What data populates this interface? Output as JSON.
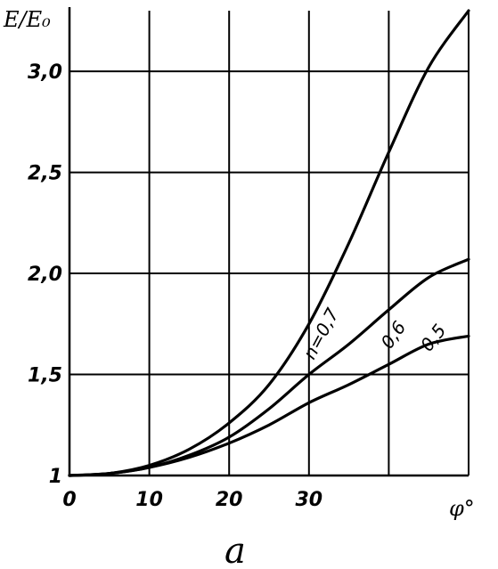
{
  "chart_data": {
    "type": "line",
    "ylabel": "E/E₀",
    "xlabel": "φ°",
    "panel_label": "a",
    "xlim": [
      0,
      50
    ],
    "ylim": [
      1,
      3.3
    ],
    "x_ticks": [
      0,
      10,
      20,
      30
    ],
    "x_tick_labels": [
      "0",
      "10",
      "20",
      "30"
    ],
    "y_ticks": [
      1,
      1.5,
      2.0,
      2.5,
      3.0
    ],
    "y_tick_labels": [
      "1",
      "1,5",
      "2,0",
      "2,5",
      "3,0"
    ],
    "grid": true,
    "line_color": "#000000",
    "series": [
      {
        "name": "n=0,7",
        "x": [
          0,
          5,
          10,
          15,
          20,
          25,
          30,
          35,
          40,
          45,
          50
        ],
        "y": [
          1.0,
          1.01,
          1.05,
          1.13,
          1.26,
          1.45,
          1.75,
          2.15,
          2.6,
          3.02,
          3.3
        ]
      },
      {
        "name": "0,6",
        "x": [
          0,
          5,
          10,
          15,
          20,
          25,
          30,
          35,
          40,
          45,
          50
        ],
        "y": [
          1.0,
          1.01,
          1.04,
          1.1,
          1.19,
          1.33,
          1.5,
          1.65,
          1.82,
          1.98,
          2.07
        ]
      },
      {
        "name": "0,5",
        "x": [
          0,
          5,
          10,
          15,
          20,
          25,
          30,
          35,
          40,
          45,
          50
        ],
        "y": [
          1.0,
          1.01,
          1.04,
          1.09,
          1.16,
          1.25,
          1.36,
          1.45,
          1.55,
          1.65,
          1.69
        ]
      }
    ]
  }
}
